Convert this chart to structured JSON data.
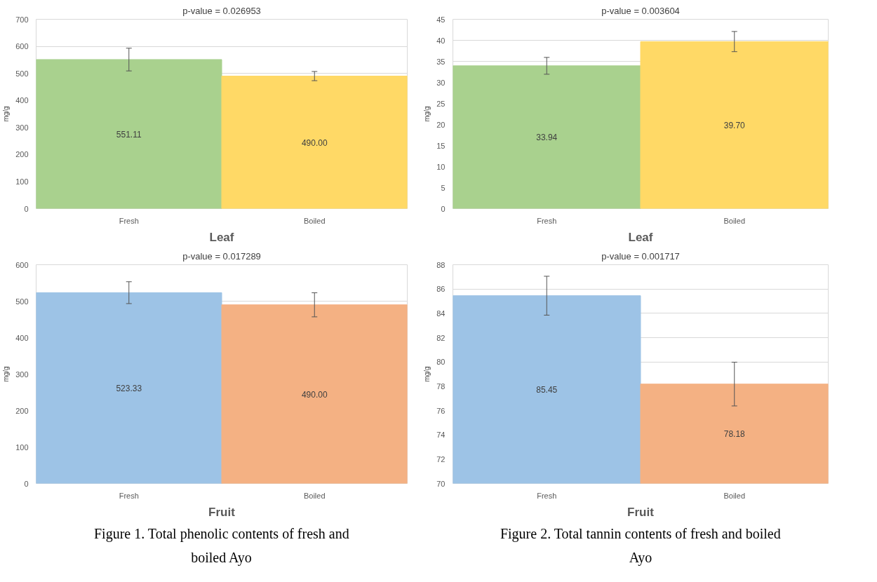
{
  "chart_data": [
    {
      "type": "bar",
      "title": "p-value = 0.026953",
      "xlabel": "Leaf",
      "ylabel": "mg/g",
      "categories": [
        "Fresh",
        "Boiled"
      ],
      "values": [
        551.11,
        490.0
      ],
      "colors": [
        "#a9d18e",
        "#ffd966"
      ],
      "errors": [
        42,
        17
      ],
      "ylim": [
        0,
        700
      ],
      "yticks": [
        0,
        100,
        200,
        300,
        400,
        500,
        600,
        700
      ],
      "grid": "y",
      "data_labels": true,
      "value_labels": [
        "551.11",
        "490.00"
      ]
    },
    {
      "type": "bar",
      "title": "p-value = 0.003604",
      "xlabel": "Leaf",
      "ylabel": "mg/g",
      "categories": [
        "Fresh",
        "Boiled"
      ],
      "values": [
        33.94,
        39.7
      ],
      "colors": [
        "#a9d18e",
        "#ffd966"
      ],
      "errors": [
        2,
        2.4
      ],
      "ylim": [
        0,
        45
      ],
      "yticks": [
        0,
        5,
        10,
        15,
        20,
        25,
        30,
        35,
        40,
        45
      ],
      "grid": "y",
      "data_labels": true,
      "value_labels": [
        "33.94",
        "39.70"
      ]
    },
    {
      "type": "bar",
      "title": "p-value = 0.017289",
      "xlabel": "Fruit",
      "ylabel": "mg/g",
      "categories": [
        "Fresh",
        "Boiled"
      ],
      "values": [
        523.33,
        490.0
      ],
      "colors": [
        "#9dc3e6",
        "#f4b183"
      ],
      "errors": [
        30,
        33
      ],
      "ylim": [
        0,
        600
      ],
      "yticks": [
        0,
        100,
        200,
        300,
        400,
        500,
        600
      ],
      "grid": "y",
      "data_labels": true,
      "value_labels": [
        "523.33",
        "490.00"
      ],
      "annotations": [
        "Figure 1. Total phenolic contents of fresh and boiled Ayo"
      ]
    },
    {
      "type": "bar",
      "title": "p-value = 0.001717",
      "xlabel": "Fruit",
      "ylabel": "mg/g",
      "categories": [
        "Fresh",
        "Boiled"
      ],
      "values": [
        85.45,
        78.18
      ],
      "colors": [
        "#9dc3e6",
        "#f4b183"
      ],
      "errors": [
        1.6,
        1.8
      ],
      "ylim": [
        70,
        88
      ],
      "yticks": [
        70,
        72,
        74,
        76,
        78,
        80,
        82,
        84,
        86,
        88
      ],
      "grid": "y",
      "data_labels": true,
      "value_labels": [
        "85.45",
        "78.18"
      ],
      "annotations": [
        "Figure 2. Total tannin contents of fresh and boiled Ayo"
      ]
    }
  ]
}
